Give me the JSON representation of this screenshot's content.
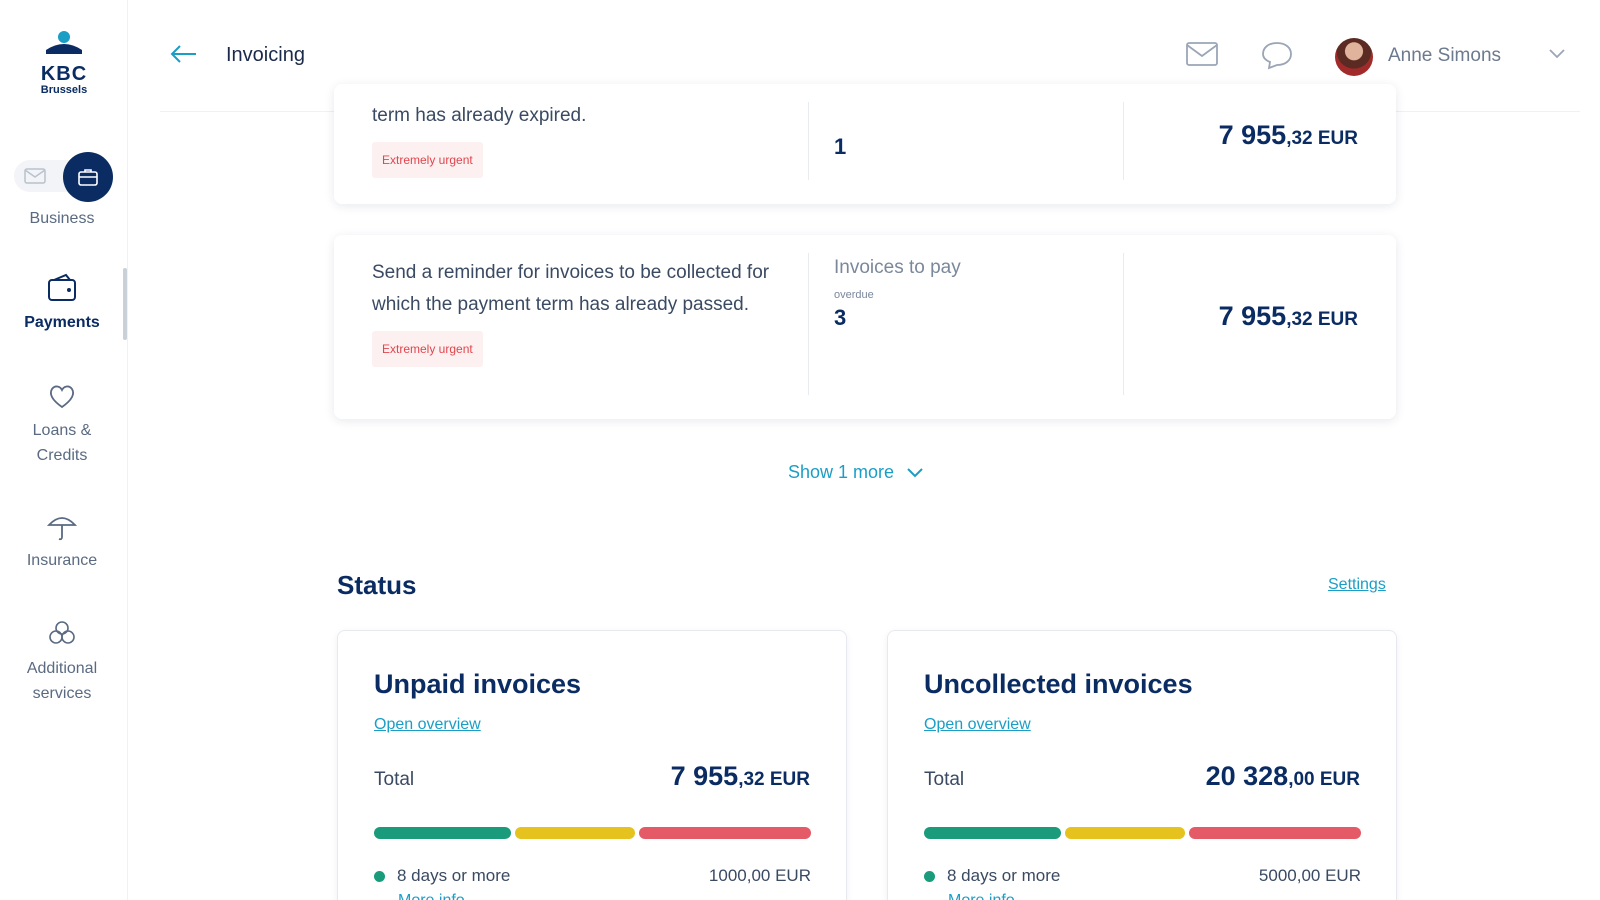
{
  "brand": {
    "name": "KBC",
    "sub": "Brussels"
  },
  "sidebar": {
    "items": [
      {
        "label": "Business",
        "icon": "briefcase-icon"
      },
      {
        "label": "Payments",
        "icon": "wallet-icon"
      },
      {
        "label": "Loans & Credits",
        "icon": "heart-hand-icon"
      },
      {
        "label": "Insurance",
        "icon": "umbrella-icon"
      },
      {
        "label": "Additional services",
        "icon": "flower-icon"
      }
    ]
  },
  "header": {
    "title": "Invoicing",
    "user_name": "Anne Simons"
  },
  "tasks": [
    {
      "description": "term has already expired.",
      "badge": "Extremely urgent",
      "count_label": "",
      "count": "1",
      "amount_main": "7 955",
      "amount_dec": ",32 EUR"
    },
    {
      "description": "Send a reminder for invoices to be collected for which the payment term has already passed.",
      "badge": "Extremely urgent",
      "count_label": "Invoices to pay",
      "count_sub": "overdue",
      "count": "3",
      "amount_main": "7 955",
      "amount_dec": ",32 EUR"
    }
  ],
  "show_more": "Show 1 more",
  "status": {
    "title": "Status",
    "settings": "Settings",
    "cards": [
      {
        "title": "Unpaid invoices",
        "link": "Open overview",
        "total_label": "Total",
        "total_main": "7 955",
        "total_dec": ",32 EUR",
        "legend_label": "8 days or more",
        "legend_value": "1000,00 EUR",
        "more": "More info"
      },
      {
        "title": "Uncollected invoices",
        "link": "Open overview",
        "total_label": "Total",
        "total_main": "20 328",
        "total_dec": ",00 EUR",
        "legend_label": "8 days or more",
        "legend_value": "5000,00 EUR",
        "more": "More info"
      }
    ]
  },
  "colors": {
    "accent": "#1b9ec6",
    "navy": "#0a2c63",
    "green": "#1a9b7b",
    "yellow": "#e6c21e",
    "red": "#e45a66",
    "urgent": "#e0464e"
  }
}
